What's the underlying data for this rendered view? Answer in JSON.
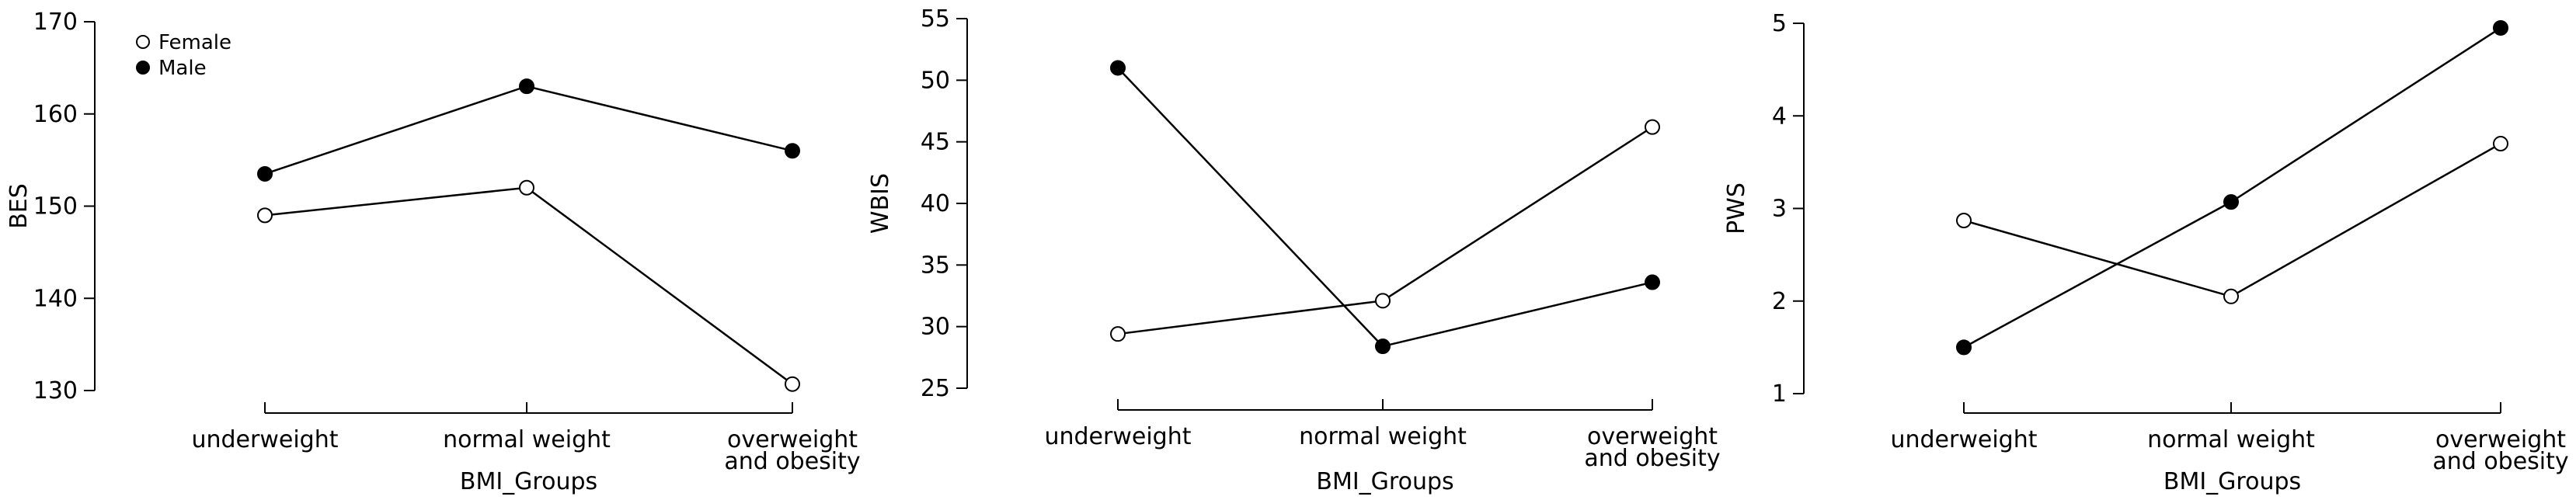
{
  "chart_data": [
    {
      "type": "line",
      "title": "",
      "xlabel": "BMI_Groups",
      "ylabel": "BES",
      "categories": [
        "underweight",
        "normal weight",
        "overweight\nand obesity"
      ],
      "ylim": [
        130,
        170
      ],
      "yticks": [
        130,
        140,
        150,
        160,
        170
      ],
      "grid": false,
      "legend": "top-left",
      "series": [
        {
          "name": "Female",
          "values": [
            149.0,
            152.0,
            130.7
          ],
          "marker": "open-circle"
        },
        {
          "name": "Male",
          "values": [
            153.5,
            163.0,
            156.0
          ],
          "marker": "filled-circle"
        }
      ]
    },
    {
      "type": "line",
      "title": "",
      "xlabel": "BMI_Groups",
      "ylabel": "WBIS",
      "categories": [
        "underweight",
        "normal weight",
        "overweight\nand obesity"
      ],
      "ylim": [
        25,
        55
      ],
      "yticks": [
        25,
        30,
        35,
        40,
        45,
        50,
        55
      ],
      "grid": false,
      "series": [
        {
          "name": "Female",
          "values": [
            29.4,
            32.1,
            46.2
          ],
          "marker": "open-circle"
        },
        {
          "name": "Male",
          "values": [
            51.0,
            28.4,
            33.6
          ],
          "marker": "filled-circle"
        }
      ]
    },
    {
      "type": "line",
      "title": "",
      "xlabel": "BMI_Groups",
      "ylabel": "PWS",
      "categories": [
        "underweight",
        "normal weight",
        "overweight\nand obesity"
      ],
      "ylim": [
        1,
        5
      ],
      "yticks": [
        1,
        2,
        3,
        4,
        5
      ],
      "grid": false,
      "series": [
        {
          "name": "Female",
          "values": [
            2.87,
            2.05,
            3.7
          ],
          "marker": "open-circle"
        },
        {
          "name": "Male",
          "values": [
            1.5,
            3.07,
            4.95
          ],
          "marker": "filled-circle"
        }
      ]
    }
  ]
}
